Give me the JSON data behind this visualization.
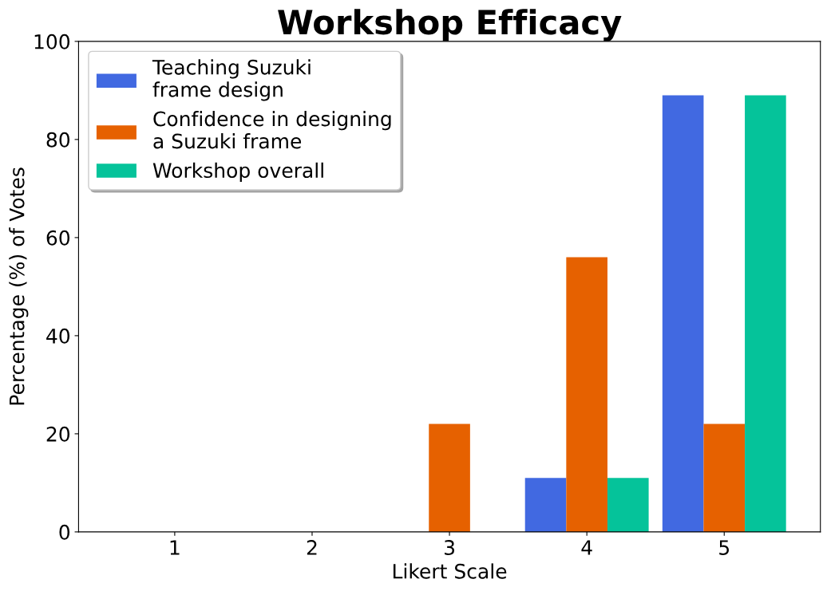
{
  "chart_data": {
    "type": "bar",
    "title": "Workshop Efficacy",
    "xlabel": "Likert Scale",
    "ylabel": "Percentage (%) of Votes",
    "categories": [
      "1",
      "2",
      "3",
      "4",
      "5"
    ],
    "series": [
      {
        "name": "Teaching Suzuki\nframe design",
        "color": "#4169e1",
        "values": [
          0,
          0,
          0,
          11,
          89
        ]
      },
      {
        "name": "Confidence in designing\na Suzuki frame",
        "color": "#e66100",
        "values": [
          0,
          0,
          22,
          56,
          22
        ]
      },
      {
        "name": "Workshop overall",
        "color": "#05c39a",
        "values": [
          0,
          0,
          0,
          11,
          89
        ]
      }
    ],
    "ylim": [
      0,
      100
    ],
    "yticks": [
      0,
      20,
      40,
      60,
      80,
      100
    ],
    "grid": false,
    "legend": "top left"
  }
}
